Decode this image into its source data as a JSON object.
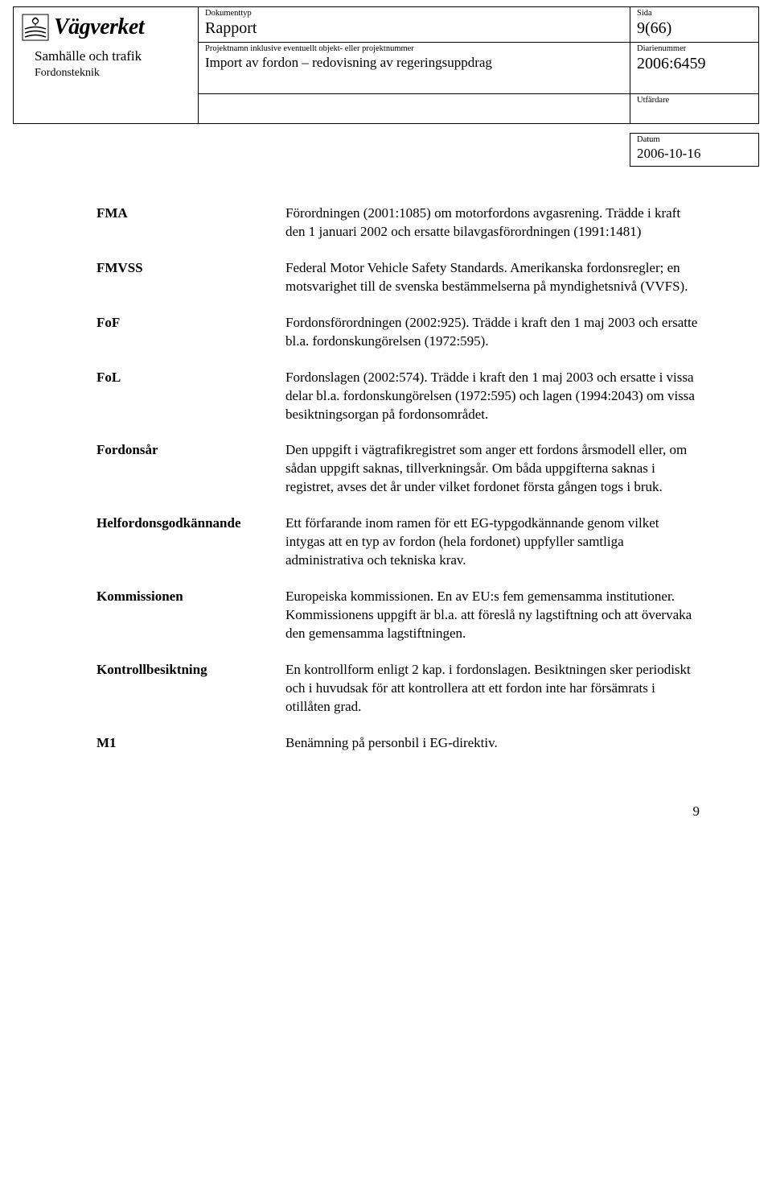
{
  "header": {
    "logo_text": "Vägverket",
    "sub_line1": "Samhälle och trafik",
    "sub_line2": "Fordonsteknik",
    "doc_type_label": "Dokumenttyp",
    "doc_type_value": "Rapport",
    "page_label": "Sida",
    "page_value": "9(66)",
    "proj_label": "Projektnamn inklusive eventuellt objekt- eller projektnummer",
    "proj_value": "Import av fordon – redovisning av regeringsuppdrag",
    "diarie_label": "Diarienummer",
    "diarie_value": "2006:6459",
    "utfardare_label": "Utfärdare",
    "datum_label": "Datum",
    "datum_value": "2006-10-16"
  },
  "definitions": [
    {
      "term": "FMA",
      "desc": "Förordningen (2001:1085) om motorfordons avgasrening. Trädde i kraft den 1 januari 2002 och ersatte bilavgasförordningen (1991:1481)"
    },
    {
      "term": "FMVSS",
      "desc": "Federal Motor Vehicle Safety Standards. Amerikanska fordonsregler; en motsvarighet till de svenska bestämmelserna på myndighetsnivå (VVFS)."
    },
    {
      "term": "FoF",
      "desc": "Fordonsförordningen (2002:925). Trädde i kraft den 1 maj 2003 och ersatte bl.a. fordonskungörelsen (1972:595)."
    },
    {
      "term": "FoL",
      "desc": "Fordonslagen (2002:574). Trädde i kraft den 1 maj 2003 och ersatte i vissa delar bl.a. fordonskungörelsen (1972:595) och lagen (1994:2043) om vissa besiktningsorgan på fordonsområdet."
    },
    {
      "term": "Fordonsår",
      "desc": "Den uppgift i vägtrafikregistret som anger ett fordons årsmodell eller, om sådan uppgift saknas, tillverkningsår. Om båda uppgifterna saknas i registret, avses det år under vilket fordonet första gången togs i bruk."
    },
    {
      "term": "Helfordonsgodkännande",
      "desc": "Ett förfarande inom ramen för ett EG-typgodkännande genom vilket intygas att en typ av fordon (hela fordonet) uppfyller samtliga administrativa och tekniska krav."
    },
    {
      "term": "Kommissionen",
      "desc": "Europeiska kommissionen. En av EU:s fem gemensamma institutioner. Kommissionens uppgift är bl.a. att föreslå ny lagstiftning och att övervaka den gemensamma lagstiftningen."
    },
    {
      "term": "Kontrollbesiktning",
      "desc": "En kontrollform enligt 2 kap. i fordonslagen. Besiktningen sker periodiskt och i huvudsak för att kontrollera att ett fordon inte har försämrats i otillåten grad."
    },
    {
      "term": "M1",
      "desc": "Benämning på personbil i EG-direktiv."
    }
  ],
  "footer_page": "9"
}
